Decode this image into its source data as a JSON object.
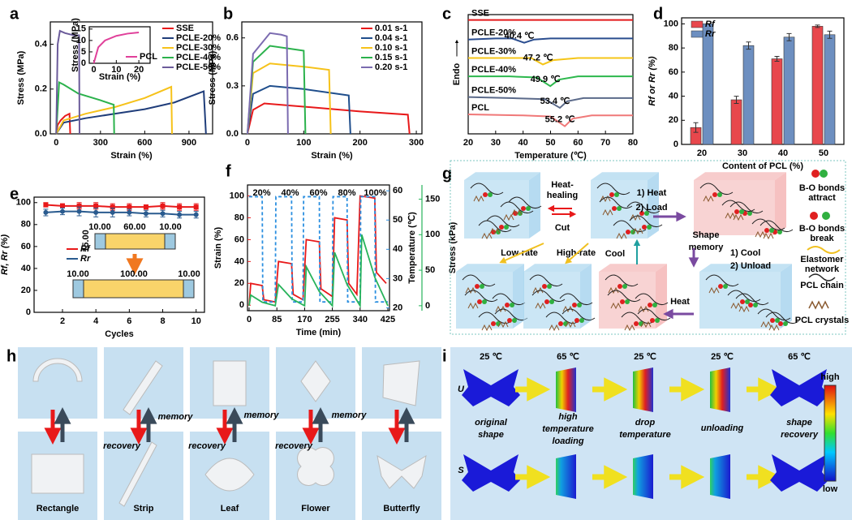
{
  "chart_data": [
    {
      "type": "line",
      "label": "a",
      "xlabel": "Strain (%)",
      "ylabel": "Stress (MPa)",
      "xlim": [
        -40,
        1060
      ],
      "ylim": [
        0,
        0.5
      ],
      "xticks": [
        0,
        300,
        600,
        900
      ],
      "yticks": [
        {
          "value": 0,
          "label": "0.0"
        },
        0.2,
        0.4
      ],
      "legend": "top-right",
      "series": [
        {
          "name": "SSE",
          "color": "#e8191a",
          "x": [
            0,
            10,
            30,
            60,
            90,
            95
          ],
          "values": [
            0,
            0.04,
            0.06,
            0.08,
            0.09,
            0
          ]
        },
        {
          "name": "PCLE-20%",
          "color": "#1f3d7a",
          "x": [
            0,
            50,
            200,
            400,
            600,
            800,
            1000,
            1015
          ],
          "values": [
            0,
            0.05,
            0.07,
            0.09,
            0.11,
            0.14,
            0.19,
            0
          ]
        },
        {
          "name": "PCLE-30%",
          "color": "#f6c21a",
          "x": [
            0,
            50,
            200,
            400,
            600,
            780,
            785
          ],
          "values": [
            0,
            0.06,
            0.09,
            0.12,
            0.16,
            0.21,
            0
          ]
        },
        {
          "name": "PCLE-40%",
          "color": "#2bb24c",
          "x": [
            0,
            20,
            50,
            150,
            300,
            390,
            393
          ],
          "values": [
            0,
            0.23,
            0.22,
            0.18,
            0.15,
            0.13,
            0
          ]
        },
        {
          "name": "PCLE-50%",
          "color": "#6b5b9a",
          "x": [
            0,
            10,
            25,
            60,
            120,
            155,
            158
          ],
          "values": [
            0,
            0.4,
            0.46,
            0.45,
            0.44,
            0.44,
            0
          ]
        }
      ]
    },
    {
      "type": "line",
      "xlabel": "Strain (%)",
      "ylabel": "Stress (MPa)",
      "xlim": [
        -2,
        25
      ],
      "ylim": [
        0,
        16
      ],
      "xticks": [
        0,
        10,
        20
      ],
      "yticks": [
        0,
        5,
        10,
        15
      ],
      "legend": "bottom-right",
      "series": [
        {
          "name": "PCL",
          "color": "#e0409a",
          "x": [
            0,
            2,
            5,
            10,
            15,
            20
          ],
          "values": [
            0,
            7,
            10,
            12,
            13,
            13.5
          ]
        }
      ]
    },
    {
      "type": "line",
      "label": "b",
      "xlabel": "Strain (%)",
      "ylabel": "Stress (MPa)",
      "xlim": [
        -10,
        310
      ],
      "ylim": [
        0,
        0.7
      ],
      "xticks": [
        0,
        100,
        200,
        300
      ],
      "yticks": [
        {
          "value": 0,
          "label": "0.0"
        },
        0.3,
        0.6
      ],
      "legend": "top-right",
      "series": [
        {
          "name": "0.01 s-1",
          "color": "#e8191a",
          "x": [
            0,
            10,
            30,
            100,
            200,
            285,
            288
          ],
          "values": [
            0,
            0.15,
            0.19,
            0.17,
            0.14,
            0.12,
            0
          ]
        },
        {
          "name": "0.04 s-1",
          "color": "#1f4e8c",
          "x": [
            0,
            10,
            40,
            100,
            180,
            183
          ],
          "values": [
            0,
            0.25,
            0.3,
            0.28,
            0.24,
            0
          ]
        },
        {
          "name": "0.10 s-1",
          "color": "#f6c21a",
          "x": [
            0,
            10,
            40,
            100,
            145,
            148
          ],
          "values": [
            0,
            0.38,
            0.44,
            0.42,
            0.4,
            0
          ]
        },
        {
          "name": "0.15 s-1",
          "color": "#2bb24c",
          "x": [
            0,
            10,
            40,
            80,
            100,
            103
          ],
          "values": [
            0,
            0.45,
            0.55,
            0.53,
            0.52,
            0
          ]
        },
        {
          "name": "0.20 s-1",
          "color": "#7b6bb0",
          "x": [
            0,
            10,
            40,
            60,
            70,
            72
          ],
          "values": [
            0,
            0.5,
            0.63,
            0.62,
            0.61,
            0
          ]
        }
      ]
    },
    {
      "type": "line",
      "label": "c",
      "xlabel": "Temperature (℃)",
      "ylabel": "Endo",
      "xlim": [
        20,
        80
      ],
      "ylim": [
        0,
        110
      ],
      "xticks": [
        20,
        30,
        40,
        50,
        60,
        70,
        80
      ],
      "legend": "inline",
      "annotations": [
        "40.4 ℃",
        "47.2 ℃",
        "49.9 ℃",
        "53.4 ℃",
        "55.2 ℃"
      ],
      "series": [
        {
          "name": "SSE",
          "color": "#e31a1c",
          "x": [
            20,
            80
          ],
          "values": [
            105,
            105
          ]
        },
        {
          "name": "PCLE-20%",
          "color": "#2a4d8f",
          "x": [
            20,
            30,
            36,
            40.4,
            44,
            50,
            80
          ],
          "values": [
            87,
            88,
            88,
            84,
            87,
            88,
            88
          ]
        },
        {
          "name": "PCLE-30%",
          "color": "#f5c518",
          "x": [
            20,
            35,
            43,
            47.2,
            51,
            60,
            80
          ],
          "values": [
            70,
            70,
            70,
            64,
            68,
            70,
            70
          ]
        },
        {
          "name": "PCLE-40%",
          "color": "#2db84d",
          "x": [
            20,
            35,
            45,
            49.9,
            53,
            60,
            80
          ],
          "values": [
            53,
            53,
            52,
            44,
            50,
            53,
            53
          ]
        },
        {
          "name": "PCLE-50%",
          "color": "#5b6a8a",
          "x": [
            20,
            35,
            48,
            53.4,
            56,
            62,
            80
          ],
          "values": [
            34,
            33,
            32,
            24,
            30,
            33,
            33
          ]
        },
        {
          "name": "PCL",
          "color": "#f07878",
          "x": [
            20,
            40,
            50,
            55.2,
            58,
            65,
            80
          ],
          "values": [
            18,
            17,
            16,
            7,
            14,
            17,
            17
          ]
        }
      ]
    },
    {
      "type": "bar",
      "label": "d",
      "xlabel": "Content of PCL (%)",
      "ylabel": "Rf or Rr (%)",
      "categories": [
        "20",
        "30",
        "40",
        "50"
      ],
      "ylim": [
        0,
        105
      ],
      "yticks": [
        0,
        20,
        40,
        60,
        80,
        100
      ],
      "legend": "top-left",
      "series": [
        {
          "name": "Rf",
          "color": "#e8474c",
          "values": [
            14,
            37,
            71,
            98
          ],
          "errors": [
            4,
            3,
            2,
            1
          ]
        },
        {
          "name": "Rr",
          "color": "#6d8fc0",
          "values": [
            100,
            82,
            89,
            91
          ],
          "errors": [
            0,
            3,
            3,
            3
          ]
        }
      ]
    },
    {
      "type": "line",
      "label": "e",
      "xlabel": "Cycles",
      "ylabel": "Rf, Rr (%)",
      "xlim": [
        0.3,
        10.5
      ],
      "ylim": [
        0,
        105
      ],
      "xticks": [
        2,
        4,
        6,
        8,
        10
      ],
      "yticks": [
        0,
        20,
        40,
        60,
        80,
        100
      ],
      "legend": "center-left",
      "sketch": [
        "10.00",
        "60.00",
        "10.00",
        "15.00",
        "10.00",
        "100.00",
        "10.00"
      ],
      "series": [
        {
          "name": "Rf",
          "color": "#e8191a",
          "marker": "square",
          "x": [
            1,
            2,
            3,
            4,
            5,
            6,
            7,
            8,
            9,
            10
          ],
          "values": [
            98,
            97,
            97,
            97,
            96,
            96,
            96,
            97,
            96,
            96
          ],
          "errors": [
            2,
            2,
            3,
            3,
            3,
            3,
            2,
            3,
            3,
            3
          ]
        },
        {
          "name": "Rr",
          "color": "#2a5b8f",
          "marker": "circle",
          "x": [
            1,
            2,
            3,
            4,
            5,
            6,
            7,
            8,
            9,
            10
          ],
          "values": [
            91,
            92,
            92,
            91,
            91,
            91,
            90,
            90,
            89,
            89
          ],
          "errors": [
            3,
            3,
            4,
            4,
            4,
            3,
            3,
            3,
            3,
            3
          ]
        }
      ]
    },
    {
      "type": "line",
      "label": "f",
      "xlabel": "Time (min)",
      "ylabel": "Strain (%)",
      "y2label": "Temperature (℃)",
      "y3label": "Stress (kPa)",
      "xlim": [
        -5,
        430
      ],
      "ylim": [
        -5,
        110
      ],
      "y2lim": [
        19,
        62
      ],
      "y3lim": [
        -7,
        170
      ],
      "xticks": [
        0,
        85,
        170,
        255,
        340,
        425
      ],
      "yticks": [
        0,
        20,
        40,
        60,
        80,
        100
      ],
      "y2ticks": [
        20,
        30,
        40,
        50,
        60
      ],
      "y3ticks": [
        0,
        50,
        100,
        150
      ],
      "annotations": [
        "20%",
        "40%",
        "60%",
        "80%",
        "100%"
      ],
      "series": [
        {
          "name": "Strain",
          "color": "#e8191a",
          "x": [
            0,
            5,
            40,
            45,
            80,
            90,
            130,
            135,
            165,
            175,
            215,
            220,
            255,
            262,
            300,
            305,
            330,
            340,
            385,
            390,
            420
          ],
          "values": [
            0,
            20,
            18,
            5,
            3,
            40,
            38,
            10,
            5,
            60,
            58,
            15,
            8,
            80,
            78,
            20,
            10,
            100,
            98,
            30,
            20
          ]
        },
        {
          "name": "Temperature",
          "color": "#2b8fe0",
          "axis": "y2",
          "style": "dashed",
          "x": [
            0,
            40,
            42,
            80,
            82,
            130,
            132,
            165,
            167,
            215,
            217,
            255,
            257,
            300,
            302,
            340,
            342,
            385,
            387,
            425
          ],
          "values": [
            58,
            58,
            22,
            22,
            58,
            58,
            22,
            22,
            58,
            58,
            22,
            22,
            58,
            58,
            22,
            22,
            58,
            58,
            22,
            22
          ]
        },
        {
          "name": "Stress",
          "color": "#27b35a",
          "axis": "y3",
          "x": [
            0,
            5,
            40,
            80,
            90,
            130,
            170,
            175,
            215,
            255,
            262,
            300,
            340,
            345,
            385,
            425
          ],
          "values": [
            0,
            15,
            5,
            0,
            30,
            10,
            0,
            55,
            20,
            0,
            75,
            30,
            0,
            100,
            40,
            0
          ]
        }
      ]
    }
  ],
  "diagram": {
    "label": "g",
    "heat_healing": [
      "Heat-",
      "healing"
    ],
    "cut": "Cut",
    "heat_load": [
      "1) Heat",
      "2) Load"
    ],
    "shape_memory": [
      "Shape",
      "memory"
    ],
    "cool_unload": [
      "1) Cool",
      "2) Unload"
    ],
    "cool": "Cool",
    "heat": "Heat",
    "low_rate": "Low-rate",
    "high_rate": "High-rate",
    "legend": [
      [
        "B-O bonds",
        "attract"
      ],
      [
        "B-O bonds",
        "break"
      ],
      [
        "Elastomer",
        "network"
      ],
      [
        "PCL chain"
      ],
      [
        "PCL crystals"
      ]
    ]
  },
  "photos": {
    "label": "h",
    "shapes": [
      "Rectangle",
      "Strip",
      "Leaf",
      "Flower",
      "Butterfly"
    ],
    "memory": [
      "memory",
      "memory",
      "memory"
    ],
    "recovery": [
      "recovery",
      "recovery",
      "recovery"
    ]
  },
  "simulation": {
    "label": "i",
    "temperatures": [
      "25 ℃",
      "65 ℃",
      "25 ℃",
      "25 ℃",
      "65 ℃"
    ],
    "rows": [
      "U",
      "S"
    ],
    "steps": [
      [
        "original",
        "shape"
      ],
      [
        "high",
        "temperature",
        "loading"
      ],
      [
        "drop",
        "temperature"
      ],
      [
        "unloading"
      ],
      [
        "shape",
        "recovery"
      ]
    ],
    "colorbar": [
      "high",
      "low"
    ]
  }
}
